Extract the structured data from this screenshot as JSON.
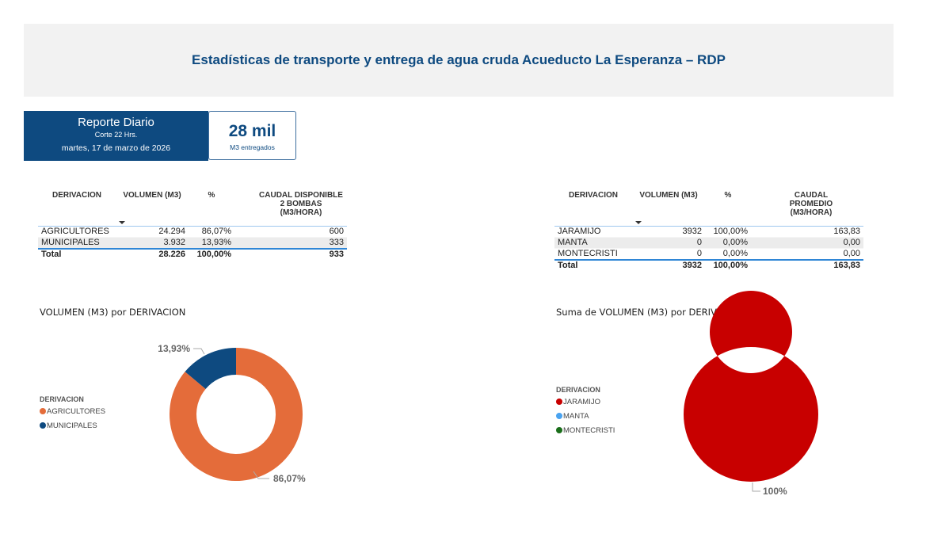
{
  "header": {
    "title": "Estadísticas de transporte y entrega de agua cruda Acueducto La Esperanza – RDP"
  },
  "report": {
    "title": "Reporte Diario",
    "cut": "Corte 22 Hrs.",
    "date": "martes, 17 de marzo de 2026"
  },
  "kpi": {
    "value": "28 mil",
    "label": "M3 entregados"
  },
  "table_left": {
    "columns": [
      "DERIVACION",
      "VOLUMEN (M3)",
      "%",
      "CAUDAL DISPONIBLE 2 BOMBAS (M3/HORA)"
    ],
    "rows": [
      [
        "AGRICULTORES",
        "24.294",
        "86,07%",
        "600"
      ],
      [
        "MUNICIPALES",
        "3.932",
        "13,93%",
        "333"
      ]
    ],
    "total": [
      "Total",
      "28.226",
      "100,00%",
      "933"
    ]
  },
  "table_right": {
    "columns": [
      "DERIVACION",
      "VOLUMEN (M3)",
      "%",
      "CAUDAL PROMEDIO (M3/HORA)"
    ],
    "rows": [
      [
        "JARAMIJO",
        "3932",
        "100,00%",
        "163,83"
      ],
      [
        "MANTA",
        "0",
        "0,00%",
        "0,00"
      ],
      [
        "MONTECRISTI",
        "0",
        "0,00%",
        "0,00"
      ]
    ],
    "total": [
      "Total",
      "3932",
      "100,00%",
      "163,83"
    ]
  },
  "chart_data": [
    {
      "type": "pie",
      "variant": "donut",
      "title": "VOLUMEN (M3) por DERIVACION",
      "legend_title": "DERIVACION",
      "legend_position": "left",
      "categories": [
        "AGRICULTORES",
        "MUNICIPALES"
      ],
      "values": [
        24294,
        3932
      ],
      "percent_labels": [
        "86,07%",
        "13,93%"
      ],
      "colors": [
        "#e46c3a",
        "#0e4a80"
      ]
    },
    {
      "type": "pie",
      "variant": "donut",
      "title": "Suma de VOLUMEN (M3) por DERIVACION",
      "legend_title": "DERIVACION",
      "legend_position": "left",
      "categories": [
        "JARAMIJO",
        "MANTA",
        "MONTECRISTI"
      ],
      "values": [
        3932,
        0,
        0
      ],
      "percent_labels": [
        "100%",
        "",
        ""
      ],
      "colors": [
        "#c80000",
        "#4aa3f0",
        "#1a6e1a"
      ]
    }
  ]
}
